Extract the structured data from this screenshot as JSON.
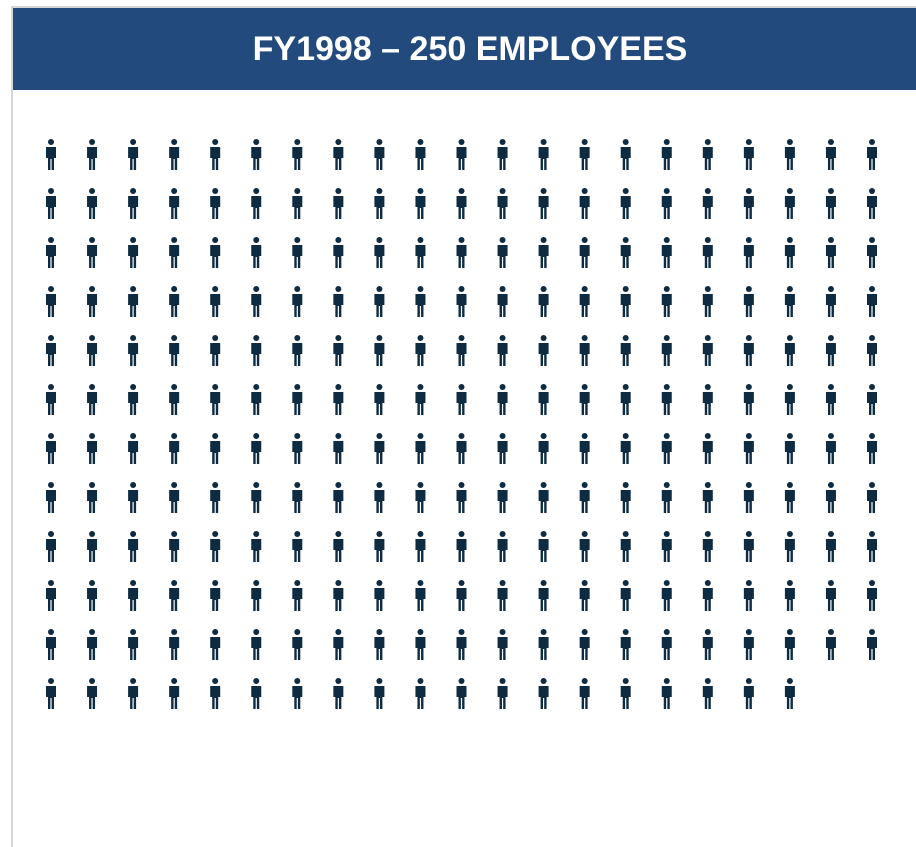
{
  "chart_data": {
    "type": "pictogram",
    "title": "FY1998 – 250 EMPLOYEES",
    "value": 250,
    "color": "#0f2b42",
    "header_color": "#224a7d"
  }
}
